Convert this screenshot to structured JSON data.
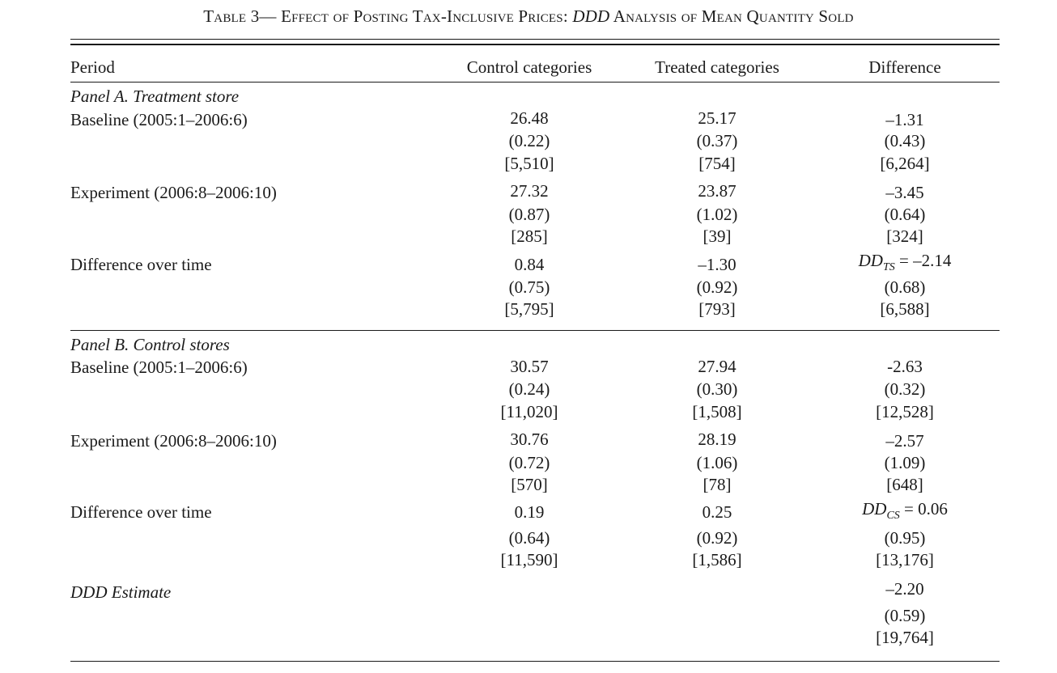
{
  "title": {
    "prefix": "Table 3— Effect of Posting Tax-Inclusive Prices: ",
    "italic": "DDD",
    "suffix": " Analysis of Mean Quantity Sold"
  },
  "header": {
    "period": "Period",
    "control": "Control categories",
    "treated": "Treated categories",
    "difference": "Difference"
  },
  "panel_a": {
    "title": "Panel A. Treatment store",
    "rows": [
      {
        "label": "Baseline (2005:1–2006:6)",
        "control": [
          "26.48",
          "(0.22)",
          "[5,510]"
        ],
        "treated": [
          "25.17",
          "(0.37)",
          "[754]"
        ],
        "difference": [
          "–1.31",
          "(0.43)",
          "[6,264]"
        ]
      },
      {
        "label": "Experiment (2006:8–2006:10)",
        "control": [
          "27.32",
          "(0.87)",
          "[285]"
        ],
        "treated": [
          "23.87",
          "(1.02)",
          "[39]"
        ],
        "difference": [
          "–3.45",
          "(0.64)",
          "[324]"
        ]
      },
      {
        "label": "Difference over time",
        "control": [
          "0.84",
          "(0.75)",
          "[5,795]"
        ],
        "treated": [
          "–1.30",
          "(0.92)",
          "[793]"
        ],
        "difference": [
          "= –2.14",
          "(0.68)",
          "[6,588]"
        ]
      }
    ],
    "dd_var": "DD",
    "dd_sub": "TS"
  },
  "panel_b": {
    "title": "Panel B. Control stores",
    "rows": [
      {
        "label": "Baseline (2005:1–2006:6)",
        "control": [
          "30.57",
          "(0.24)",
          "[11,020]"
        ],
        "treated": [
          "27.94",
          "(0.30)",
          "[1,508]"
        ],
        "difference": [
          "-2.63",
          "(0.32)",
          "[12,528]"
        ]
      },
      {
        "label": "Experiment (2006:8–2006:10)",
        "control": [
          "30.76",
          "(0.72)",
          "[570]"
        ],
        "treated": [
          "28.19",
          "(1.06)",
          "[78]"
        ],
        "difference": [
          "–2.57",
          "(1.09)",
          "[648]"
        ]
      },
      {
        "label": "Difference over time",
        "control": [
          "0.19",
          "(0.64)",
          "[11,590]"
        ],
        "treated": [
          "0.25",
          "(0.92)",
          "[1,586]"
        ],
        "difference": [
          "= 0.06",
          "(0.95)",
          "[13,176]"
        ]
      }
    ],
    "dd_var": "DD",
    "dd_sub": "CS"
  },
  "ddd": {
    "label": "DDD Estimate",
    "difference": [
      "–2.20",
      "(0.59)",
      "[19,764]"
    ]
  }
}
